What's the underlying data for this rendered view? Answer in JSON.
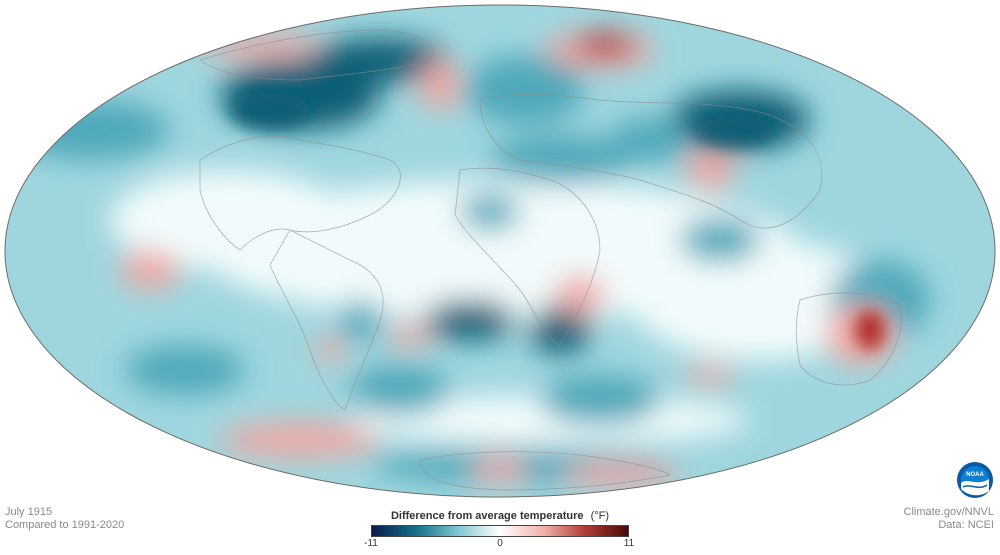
{
  "map": {
    "projection": "mollweide",
    "colors": {
      "strong_cool": "#0c5f76",
      "cool": "#4fa9bb",
      "mild_cool": "#9fd6de",
      "neutral": "#f2fbfc",
      "warm": "#f0a9a4",
      "strong_warm": "#b0322f"
    }
  },
  "info": {
    "date": "July 1915",
    "baseline": "Compared to 1991-2020"
  },
  "credits": {
    "source": "Climate.gov/NNVL",
    "data": "Data: NCEI"
  },
  "legend": {
    "title": "Difference from average temperature",
    "unit": "(°F)",
    "min": "-11",
    "mid": "0",
    "max": "11",
    "colors": [
      "#0d1b4c",
      "#0f6f86",
      "#7cc6d0",
      "#ffffff",
      "#f2b3ad",
      "#b33a34",
      "#4a0a0a"
    ]
  },
  "logo": {
    "icon": "noaa-logo-icon",
    "text": "NOAA"
  }
}
